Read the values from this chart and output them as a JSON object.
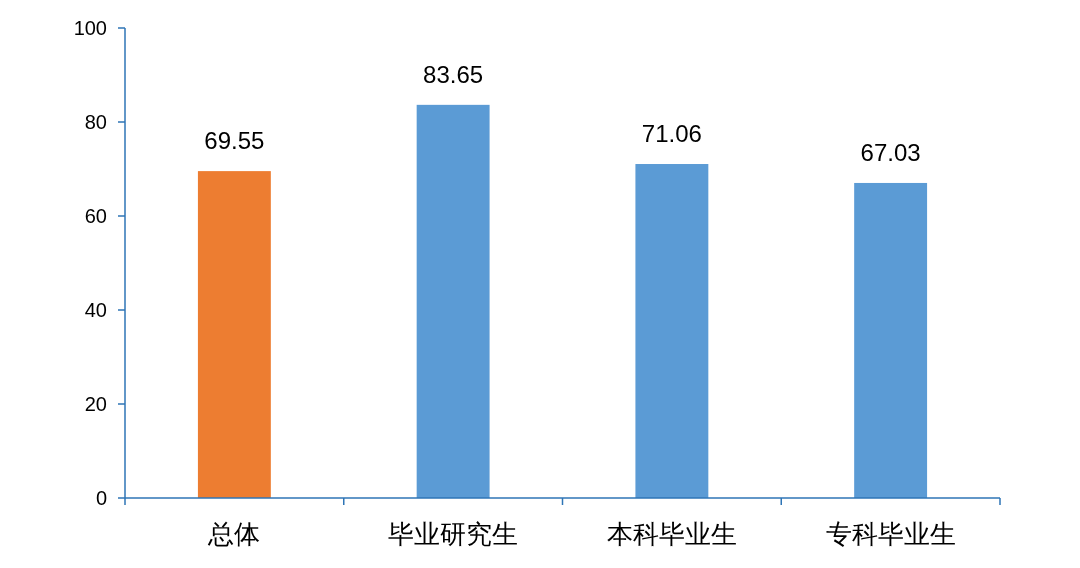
{
  "chart_data": {
    "type": "bar",
    "categories": [
      "总体",
      "毕业研究生",
      "本科毕业生",
      "专科毕业生"
    ],
    "values": [
      69.55,
      83.65,
      71.06,
      67.03
    ],
    "colors": [
      "#ed7d31",
      "#5b9bd5",
      "#5b9bd5",
      "#5b9bd5"
    ],
    "ylim": [
      0,
      100
    ],
    "yticks": [
      0,
      20,
      40,
      60,
      80,
      100
    ],
    "data_labels": true,
    "grid": false
  }
}
